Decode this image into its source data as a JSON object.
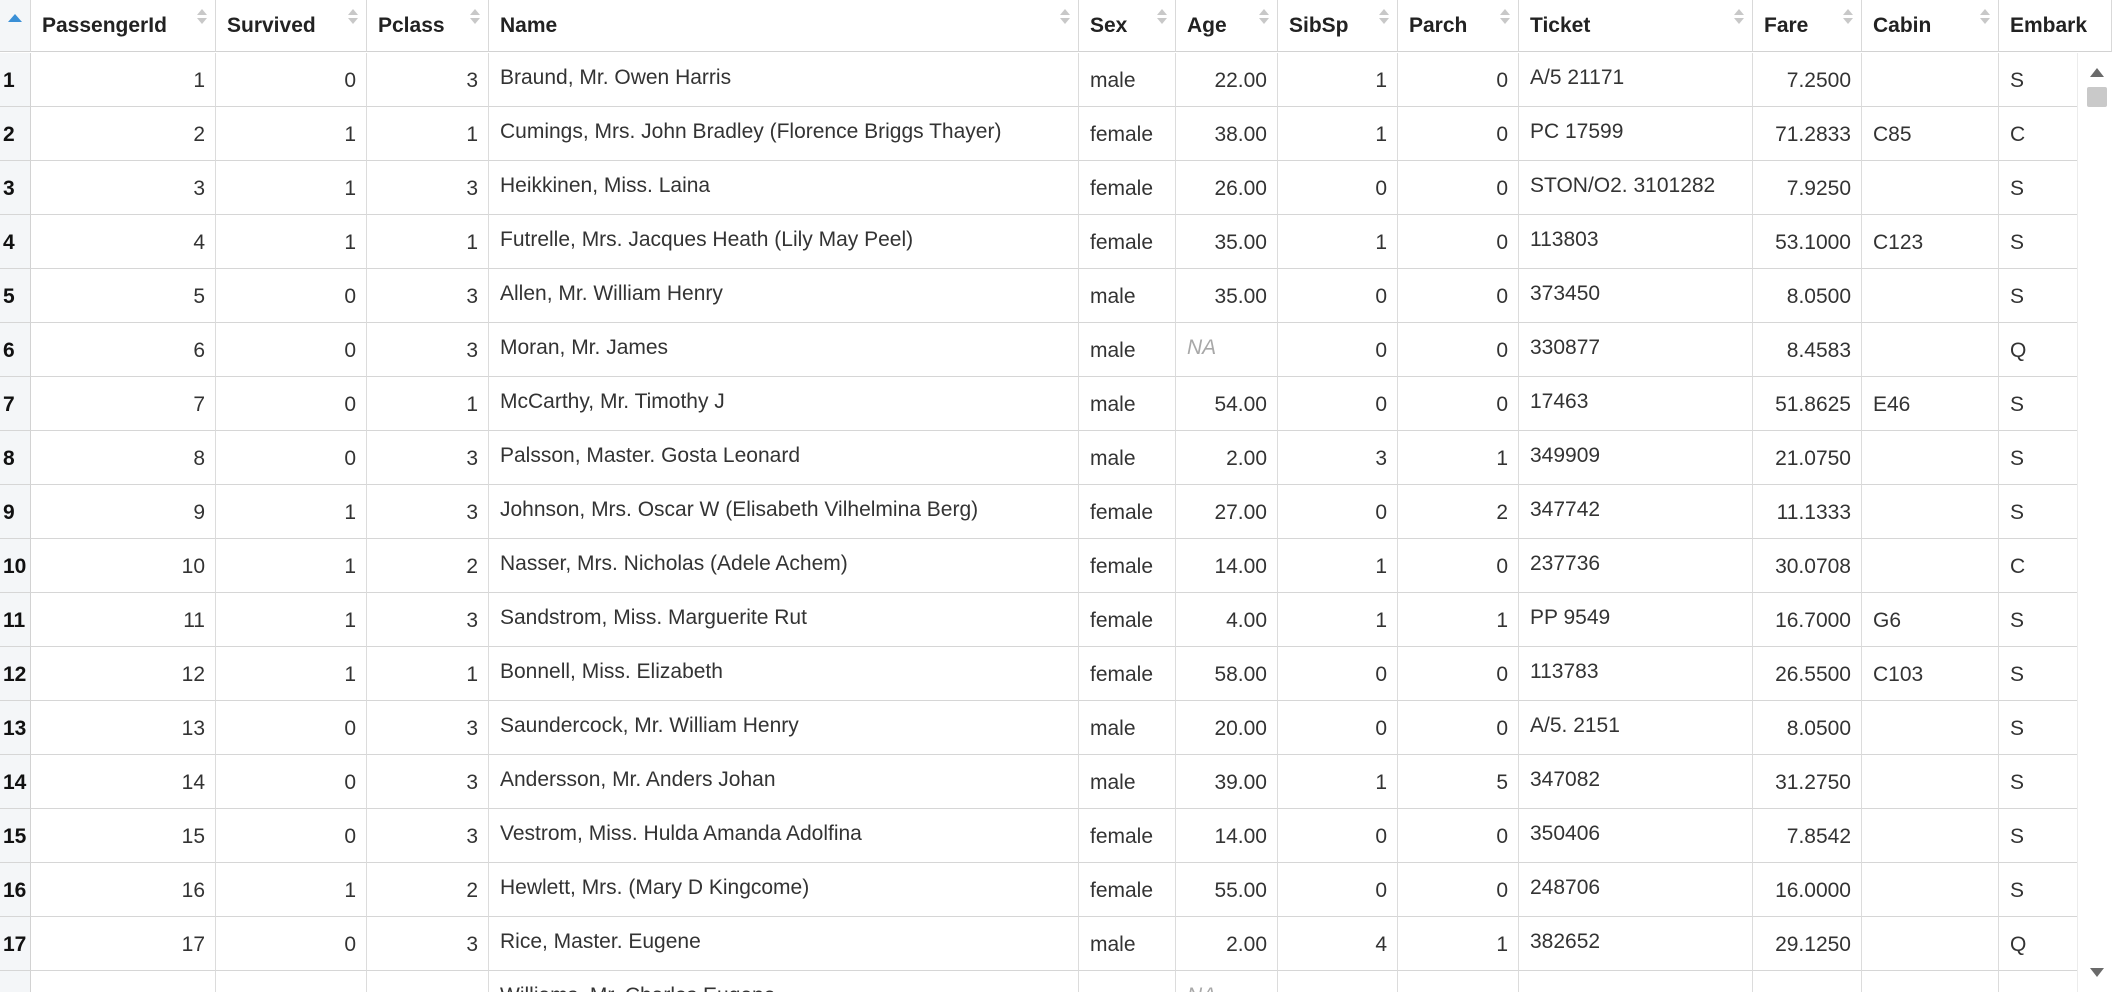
{
  "table": {
    "columns": [
      {
        "key": "PassengerId",
        "label": "PassengerId",
        "align": "num"
      },
      {
        "key": "Survived",
        "label": "Survived",
        "align": "num"
      },
      {
        "key": "Pclass",
        "label": "Pclass",
        "align": "num"
      },
      {
        "key": "Name",
        "label": "Name",
        "align": "txt"
      },
      {
        "key": "Sex",
        "label": "Sex",
        "align": "txt"
      },
      {
        "key": "Age",
        "label": "Age",
        "align": "num"
      },
      {
        "key": "SibSp",
        "label": "SibSp",
        "align": "num"
      },
      {
        "key": "Parch",
        "label": "Parch",
        "align": "num"
      },
      {
        "key": "Ticket",
        "label": "Ticket",
        "align": "txt"
      },
      {
        "key": "Fare",
        "label": "Fare",
        "align": "num"
      },
      {
        "key": "Cabin",
        "label": "Cabin",
        "align": "txt"
      },
      {
        "key": "Embarked",
        "label": "Embark",
        "align": "txt"
      }
    ],
    "rows": [
      {
        "rownum": "1",
        "PassengerId": "1",
        "Survived": "0",
        "Pclass": "3",
        "Name": "Braund, Mr. Owen Harris",
        "Sex": "male",
        "Age": "22.00",
        "SibSp": "1",
        "Parch": "0",
        "Ticket": "A/5 21171",
        "Fare": "7.2500",
        "Cabin": "",
        "Embarked": "S"
      },
      {
        "rownum": "2",
        "PassengerId": "2",
        "Survived": "1",
        "Pclass": "1",
        "Name": "Cumings, Mrs. John Bradley (Florence Briggs Thayer)",
        "Sex": "female",
        "Age": "38.00",
        "SibSp": "1",
        "Parch": "0",
        "Ticket": "PC 17599",
        "Fare": "71.2833",
        "Cabin": "C85",
        "Embarked": "C"
      },
      {
        "rownum": "3",
        "PassengerId": "3",
        "Survived": "1",
        "Pclass": "3",
        "Name": "Heikkinen, Miss. Laina",
        "Sex": "female",
        "Age": "26.00",
        "SibSp": "0",
        "Parch": "0",
        "Ticket": "STON/O2. 3101282",
        "Fare": "7.9250",
        "Cabin": "",
        "Embarked": "S"
      },
      {
        "rownum": "4",
        "PassengerId": "4",
        "Survived": "1",
        "Pclass": "1",
        "Name": "Futrelle, Mrs. Jacques Heath (Lily May Peel)",
        "Sex": "female",
        "Age": "35.00",
        "SibSp": "1",
        "Parch": "0",
        "Ticket": "113803",
        "Fare": "53.1000",
        "Cabin": "C123",
        "Embarked": "S"
      },
      {
        "rownum": "5",
        "PassengerId": "5",
        "Survived": "0",
        "Pclass": "3",
        "Name": "Allen, Mr. William Henry",
        "Sex": "male",
        "Age": "35.00",
        "SibSp": "0",
        "Parch": "0",
        "Ticket": "373450",
        "Fare": "8.0500",
        "Cabin": "",
        "Embarked": "S"
      },
      {
        "rownum": "6",
        "PassengerId": "6",
        "Survived": "0",
        "Pclass": "3",
        "Name": "Moran, Mr. James",
        "Sex": "male",
        "Age": "NA",
        "SibSp": "0",
        "Parch": "0",
        "Ticket": "330877",
        "Fare": "8.4583",
        "Cabin": "",
        "Embarked": "Q"
      },
      {
        "rownum": "7",
        "PassengerId": "7",
        "Survived": "0",
        "Pclass": "1",
        "Name": "McCarthy, Mr. Timothy J",
        "Sex": "male",
        "Age": "54.00",
        "SibSp": "0",
        "Parch": "0",
        "Ticket": "17463",
        "Fare": "51.8625",
        "Cabin": "E46",
        "Embarked": "S"
      },
      {
        "rownum": "8",
        "PassengerId": "8",
        "Survived": "0",
        "Pclass": "3",
        "Name": "Palsson, Master. Gosta Leonard",
        "Sex": "male",
        "Age": "2.00",
        "SibSp": "3",
        "Parch": "1",
        "Ticket": "349909",
        "Fare": "21.0750",
        "Cabin": "",
        "Embarked": "S"
      },
      {
        "rownum": "9",
        "PassengerId": "9",
        "Survived": "1",
        "Pclass": "3",
        "Name": "Johnson, Mrs. Oscar W (Elisabeth Vilhelmina Berg)",
        "Sex": "female",
        "Age": "27.00",
        "SibSp": "0",
        "Parch": "2",
        "Ticket": "347742",
        "Fare": "11.1333",
        "Cabin": "",
        "Embarked": "S"
      },
      {
        "rownum": "10",
        "PassengerId": "10",
        "Survived": "1",
        "Pclass": "2",
        "Name": "Nasser, Mrs. Nicholas (Adele Achem)",
        "Sex": "female",
        "Age": "14.00",
        "SibSp": "1",
        "Parch": "0",
        "Ticket": "237736",
        "Fare": "30.0708",
        "Cabin": "",
        "Embarked": "C"
      },
      {
        "rownum": "11",
        "PassengerId": "11",
        "Survived": "1",
        "Pclass": "3",
        "Name": "Sandstrom, Miss. Marguerite Rut",
        "Sex": "female",
        "Age": "4.00",
        "SibSp": "1",
        "Parch": "1",
        "Ticket": "PP 9549",
        "Fare": "16.7000",
        "Cabin": "G6",
        "Embarked": "S"
      },
      {
        "rownum": "12",
        "PassengerId": "12",
        "Survived": "1",
        "Pclass": "1",
        "Name": "Bonnell, Miss. Elizabeth",
        "Sex": "female",
        "Age": "58.00",
        "SibSp": "0",
        "Parch": "0",
        "Ticket": "113783",
        "Fare": "26.5500",
        "Cabin": "C103",
        "Embarked": "S"
      },
      {
        "rownum": "13",
        "PassengerId": "13",
        "Survived": "0",
        "Pclass": "3",
        "Name": "Saundercock, Mr. William Henry",
        "Sex": "male",
        "Age": "20.00",
        "SibSp": "0",
        "Parch": "0",
        "Ticket": "A/5. 2151",
        "Fare": "8.0500",
        "Cabin": "",
        "Embarked": "S"
      },
      {
        "rownum": "14",
        "PassengerId": "14",
        "Survived": "0",
        "Pclass": "3",
        "Name": "Andersson, Mr. Anders Johan",
        "Sex": "male",
        "Age": "39.00",
        "SibSp": "1",
        "Parch": "5",
        "Ticket": "347082",
        "Fare": "31.2750",
        "Cabin": "",
        "Embarked": "S"
      },
      {
        "rownum": "15",
        "PassengerId": "15",
        "Survived": "0",
        "Pclass": "3",
        "Name": "Vestrom, Miss. Hulda Amanda Adolfina",
        "Sex": "female",
        "Age": "14.00",
        "SibSp": "0",
        "Parch": "0",
        "Ticket": "350406",
        "Fare": "7.8542",
        "Cabin": "",
        "Embarked": "S"
      },
      {
        "rownum": "16",
        "PassengerId": "16",
        "Survived": "1",
        "Pclass": "2",
        "Name": "Hewlett, Mrs. (Mary D Kingcome)",
        "Sex": "female",
        "Age": "55.00",
        "SibSp": "0",
        "Parch": "0",
        "Ticket": "248706",
        "Fare": "16.0000",
        "Cabin": "",
        "Embarked": "S"
      },
      {
        "rownum": "17",
        "PassengerId": "17",
        "Survived": "0",
        "Pclass": "3",
        "Name": "Rice, Master. Eugene",
        "Sex": "male",
        "Age": "2.00",
        "SibSp": "4",
        "Parch": "1",
        "Ticket": "382652",
        "Fare": "29.1250",
        "Cabin": "",
        "Embarked": "Q"
      },
      {
        "rownum": "",
        "PassengerId": "",
        "Survived": "",
        "Pclass": "",
        "Name": "Williams, Mr. Charles Eugene",
        "Sex": "",
        "Age": "NA",
        "SibSp": "",
        "Parch": "",
        "Ticket": "",
        "Fare": "",
        "Cabin": "",
        "Embarked": ""
      }
    ]
  },
  "colors": {
    "sort_active": "#3a8fd6",
    "rownum_bg": "#f4f6f8",
    "na_text": "#a8a8a8"
  },
  "icons": {
    "corner": "sort-ascending-icon",
    "sort": "sort-arrows-icon",
    "scroll_up": "scroll-up-icon",
    "scroll_down": "scroll-down-icon"
  }
}
